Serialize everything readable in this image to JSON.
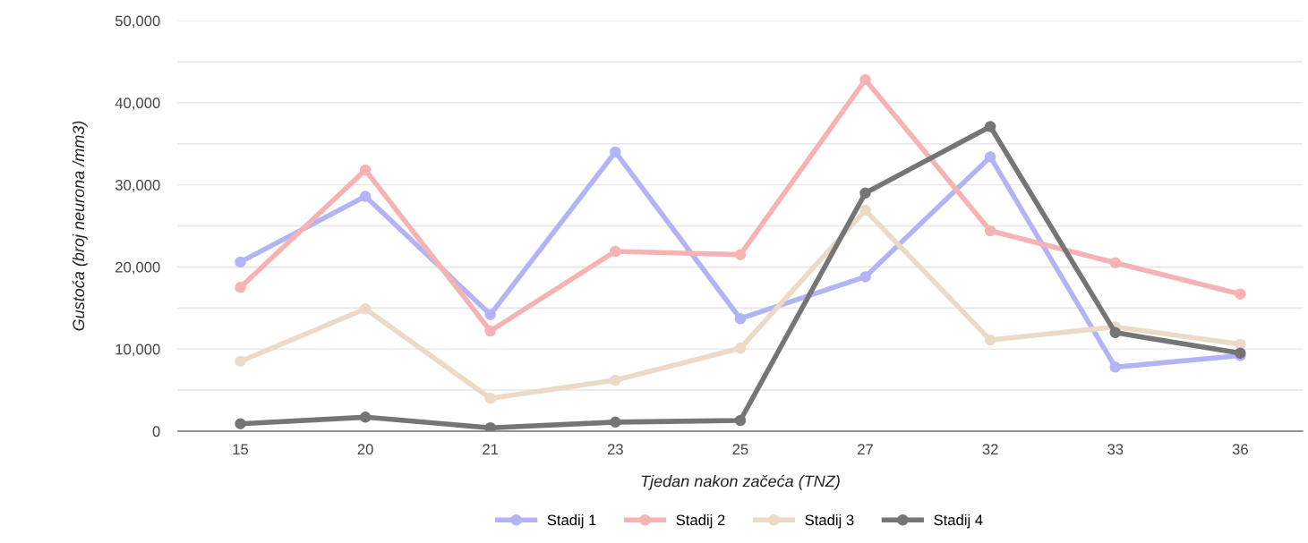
{
  "chart_data": {
    "type": "line",
    "xlabel": "Tjedan nakon začeća (TNZ)",
    "ylabel": "Gustoća (broj neurona /mm3)",
    "categories": [
      "15",
      "20",
      "21",
      "23",
      "25",
      "27",
      "32",
      "33",
      "36"
    ],
    "series": [
      {
        "name": "Stadij 1",
        "color": "#b3b3f7",
        "values": [
          20600,
          28600,
          14200,
          34000,
          13700,
          18800,
          33400,
          7800,
          9200
        ]
      },
      {
        "name": "Stadij 2",
        "color": "#f7b3b3",
        "values": [
          17500,
          31800,
          12200,
          21900,
          21500,
          42800,
          24400,
          20500,
          16700
        ]
      },
      {
        "name": "Stadij 3",
        "color": "#ecd9c6",
        "values": [
          8500,
          14900,
          4000,
          6200,
          10100,
          26900,
          11100,
          12700,
          10600
        ]
      },
      {
        "name": "Stadij 4",
        "color": "#757575",
        "values": [
          900,
          1700,
          400,
          1100,
          1300,
          29000,
          37100,
          12000,
          9500
        ]
      }
    ],
    "ylim": [
      0,
      50000
    ],
    "yticks": [
      {
        "value": 0,
        "label": "0"
      },
      {
        "value": 5000,
        "label": null
      },
      {
        "value": 10000,
        "label": "10,000"
      },
      {
        "value": 15000,
        "label": null
      },
      {
        "value": 20000,
        "label": "20,000"
      },
      {
        "value": 25000,
        "label": null
      },
      {
        "value": 30000,
        "label": "30,000"
      },
      {
        "value": 35000,
        "label": null
      },
      {
        "value": 40000,
        "label": "40,000"
      },
      {
        "value": 45000,
        "label": null
      },
      {
        "value": 50000,
        "label": "50,000"
      }
    ],
    "grid": "y",
    "legend": "bottom",
    "marker": "circle",
    "line_style": "solid"
  }
}
